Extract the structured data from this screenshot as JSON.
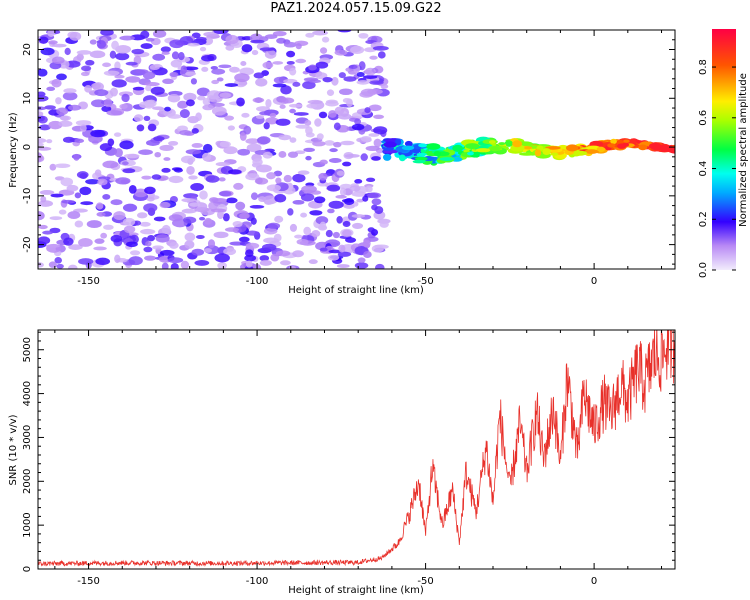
{
  "figure": {
    "title": "PAZ1.2024.057.15.09.G22"
  },
  "chart_data": [
    {
      "type": "heatmap",
      "xlabel": "Height of straight line (km)",
      "ylabel": "Frequency (Hz)",
      "xlim": [
        -165,
        24
      ],
      "ylim": [
        -25,
        24
      ],
      "xticks": [
        -150,
        -100,
        -50,
        0
      ],
      "yticks": [
        -20,
        -10,
        0,
        10,
        20
      ],
      "colorbar": {
        "label": "Normalized spectral amplitude",
        "ticks": [
          0.0,
          0.2,
          0.4,
          0.6,
          0.8
        ],
        "range": [
          0,
          0.95
        ],
        "colormap": "gist_rainbow_r"
      },
      "regions": [
        {
          "description": "broadband noise",
          "x_range": [
            -165,
            -62
          ],
          "y_range": [
            -25,
            24
          ],
          "amplitude_range": [
            0.05,
            0.2
          ]
        },
        {
          "description": "signal band",
          "x_range": [
            -62,
            24
          ],
          "center_frequency": 0,
          "amplitude_range": [
            0.15,
            0.9
          ]
        }
      ]
    },
    {
      "type": "line",
      "xlabel": "Height of straight line (km)",
      "ylabel": "SNR (10 * v/v)",
      "xlim": [
        -165,
        24
      ],
      "ylim": [
        0,
        5450
      ],
      "xticks": [
        -150,
        -100,
        -50,
        0
      ],
      "yticks": [
        0,
        1000,
        2000,
        3000,
        4000,
        5000
      ],
      "series": [
        {
          "color": "#e8302a",
          "x": [
            -165,
            -140,
            -115,
            -90,
            -70,
            -63,
            -58,
            -55,
            -52,
            -50,
            -48,
            -45,
            -42,
            -40,
            -38,
            -35,
            -32,
            -30,
            -28,
            -25,
            -22,
            -20,
            -17,
            -15,
            -12,
            -10,
            -8,
            -5,
            -3,
            0,
            3,
            5,
            8,
            10,
            13,
            15,
            18,
            20,
            22,
            24
          ],
          "y": [
            120,
            140,
            130,
            140,
            150,
            250,
            600,
            1200,
            2000,
            800,
            2300,
            1000,
            1800,
            600,
            2200,
            1300,
            2800,
            1500,
            3500,
            1800,
            3300,
            2200,
            3600,
            2500,
            3700,
            2400,
            4400,
            2600,
            4000,
            3200,
            3800,
            3500,
            4200,
            3800,
            4600,
            4200,
            4900,
            4800,
            5200,
            5100
          ]
        }
      ]
    }
  ]
}
